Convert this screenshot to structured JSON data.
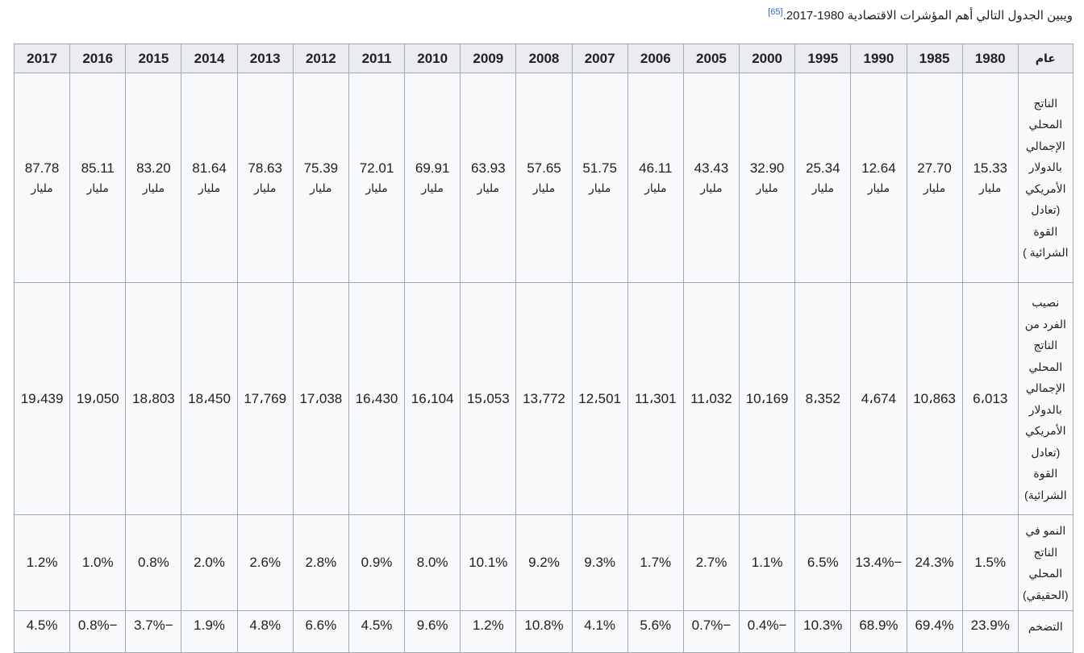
{
  "intro": {
    "text": "ويبين الجدول التالي أهم المؤشرات الاقتصادية 1980-2017.",
    "ref": "[65]"
  },
  "table": {
    "header_label": "عام",
    "years": [
      "1980",
      "1985",
      "1990",
      "1995",
      "2000",
      "2005",
      "2006",
      "2007",
      "2008",
      "2009",
      "2010",
      "2011",
      "2012",
      "2013",
      "2014",
      "2015",
      "2016",
      "2017"
    ],
    "rows": [
      {
        "label": "الناتج المحلي الإجمالي بالدولار الأمريكي (تعادل القوة الشرائية )",
        "unit": "مليار",
        "values": [
          "15.33",
          "27.70",
          "12.64",
          "25.34",
          "32.90",
          "43.43",
          "46.11",
          "51.75",
          "57.65",
          "63.93",
          "69.91",
          "72.01",
          "75.39",
          "78.63",
          "81.64",
          "83.20",
          "85.11",
          "87.78"
        ]
      },
      {
        "label": "نصيب الفرد من الناتج المحلي الإجمالي بالدولار الأمريكي (تعادل القوة الشرائية)",
        "unit": "",
        "values": [
          "6،013",
          "10،863",
          "4،674",
          "8،352",
          "10،169",
          "11،032",
          "11،301",
          "12،501",
          "13،772",
          "15،053",
          "16،104",
          "16،430",
          "17،038",
          "17،769",
          "18،450",
          "18،803",
          "19،050",
          "19،439"
        ]
      },
      {
        "label": "النمو في الناتج المحلي (الحقيقي)",
        "unit": "",
        "values": [
          "1.5%",
          "24.3%",
          "13.4%−",
          "6.5%",
          "1.1%",
          "2.7%",
          "1.7%",
          "9.3%",
          "9.2%",
          "10.1%",
          "8.0%",
          "0.9%",
          "2.8%",
          "2.6%",
          "2.0%",
          "0.8%",
          "1.0%",
          "1.2%"
        ]
      },
      {
        "label": "التضخم",
        "unit": "",
        "values": [
          "23.9%",
          "69.4%",
          "68.9%",
          "10.3%",
          "0.4%−",
          "0.7%−",
          "5.6%",
          "4.1%",
          "10.8%",
          "1.2%",
          "9.6%",
          "4.5%",
          "6.6%",
          "4.8%",
          "1.9%",
          "3.7%−",
          "0.8%−",
          "4.5%"
        ]
      }
    ]
  }
}
